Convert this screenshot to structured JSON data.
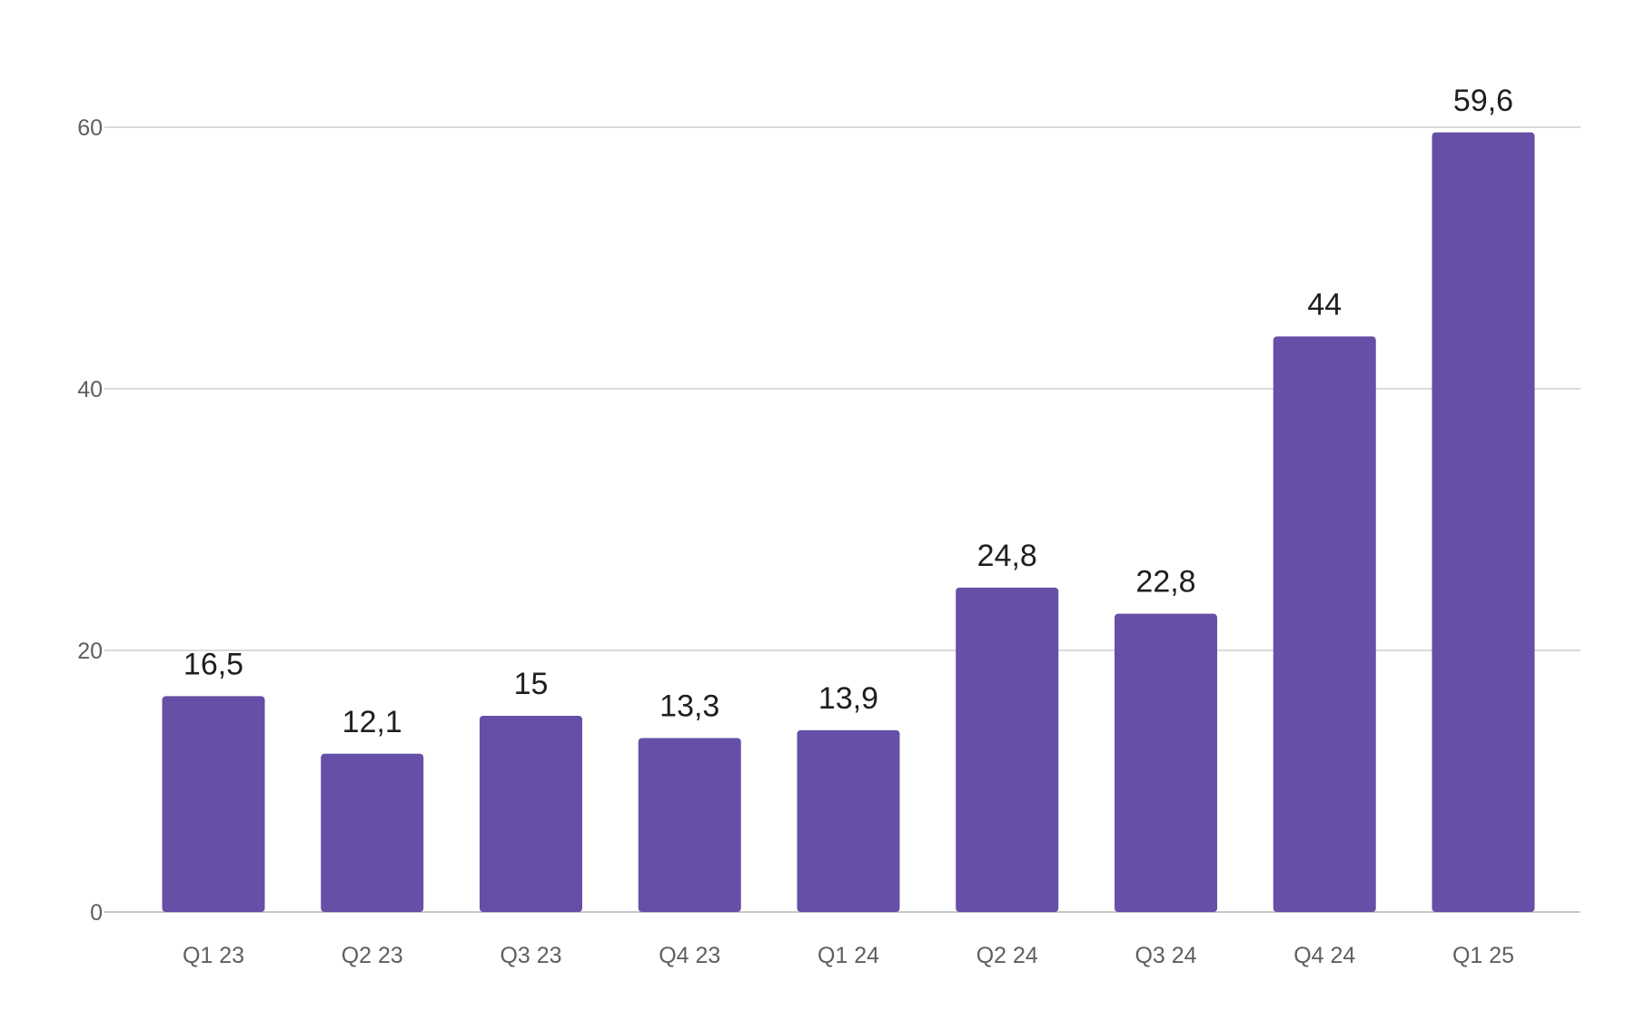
{
  "chart_data": {
    "type": "bar",
    "title": "",
    "xlabel": "",
    "ylabel": "",
    "categories": [
      "Q1 23",
      "Q2 23",
      "Q3 23",
      "Q4 23",
      "Q1 24",
      "Q2 24",
      "Q3 24",
      "Q4 24",
      "Q1 25"
    ],
    "values": [
      16.5,
      12.1,
      15,
      13.3,
      13.9,
      24.8,
      22.8,
      44,
      59.6
    ],
    "data_labels": [
      "16,5",
      "12,1",
      "15",
      "13,3",
      "13,9",
      "24,8",
      "22,8",
      "44",
      "59,6"
    ],
    "ylim": [
      0,
      60
    ],
    "yticks": [
      0,
      20,
      40,
      60
    ],
    "ytick_labels": [
      "0",
      "20",
      "40",
      "60"
    ],
    "grid": true,
    "legend": "none",
    "bar_color": "#664fa6"
  }
}
